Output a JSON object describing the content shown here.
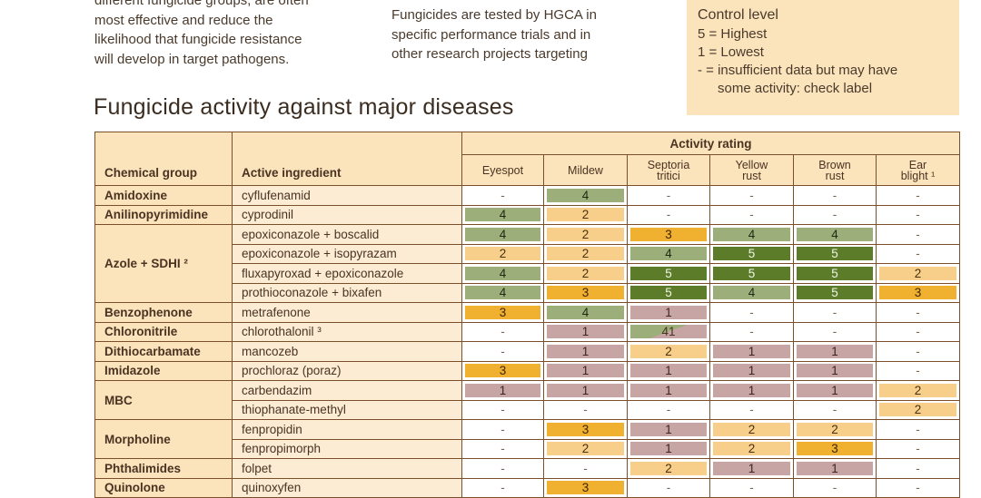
{
  "intro_left": [
    "different fungicide groups, are often",
    "most effective and reduce the",
    "likelihood that fungicide resistance",
    "will develop in target pathogens."
  ],
  "intro_mid": [
    "Fungicides are tested by HGCA in",
    "specific performance trials and in",
    "other research projects targeting"
  ],
  "legend": {
    "title": "Control level",
    "lines": [
      "5 = Highest",
      "1 = Lowest",
      "- = insufficient data but may have",
      "some activity: check label"
    ]
  },
  "section_title": "Fungicide activity against major diseases",
  "table": {
    "col_chemical_group": "Chemical group",
    "col_active_ingredient": "Active ingredient",
    "activity_rating": "Activity rating",
    "diseases": [
      [
        "Eyespot",
        ""
      ],
      [
        "Mildew",
        ""
      ],
      [
        "Septoria",
        "tritici"
      ],
      [
        "Yellow",
        "rust"
      ],
      [
        "Brown",
        "rust"
      ],
      [
        "Ear",
        "blight ¹"
      ]
    ],
    "groups": [
      {
        "name": "Amidoxine",
        "rows": [
          {
            "ai": "cyflufenamid",
            "r": [
              "-",
              "4",
              "-",
              "-",
              "-",
              "-"
            ]
          }
        ]
      },
      {
        "name": "Anilinopyrimidine",
        "rows": [
          {
            "ai": "cyprodinil",
            "r": [
              "4",
              "2",
              "-",
              "-",
              "-",
              "-"
            ]
          }
        ]
      },
      {
        "name": "Azole + SDHI ²",
        "rows": [
          {
            "ai": "epoxiconazole + boscalid",
            "r": [
              "4",
              "2",
              "3",
              "4",
              "4",
              "-"
            ]
          },
          {
            "ai": "epoxiconazole + isopyrazam",
            "r": [
              "2",
              "2",
              "4",
              "5",
              "5",
              "-"
            ]
          },
          {
            "ai": "fluxapyroxad + epoxiconazole",
            "r": [
              "4",
              "2",
              "5",
              "5",
              "5",
              "2"
            ]
          },
          {
            "ai": "prothioconazole + bixafen",
            "r": [
              "4",
              "3",
              "5",
              "4",
              "5",
              "3"
            ]
          }
        ]
      },
      {
        "name": "Benzophenone",
        "rows": [
          {
            "ai": "metrafenone",
            "r": [
              "3",
              "4",
              "1",
              "-",
              "-",
              "-"
            ]
          }
        ]
      },
      {
        "name": "Chloronitrile",
        "rows": [
          {
            "ai": "chlorothalonil ³",
            "r": [
              "-",
              "1",
              "4|1",
              "-",
              "-",
              "-"
            ]
          }
        ]
      },
      {
        "name": "Dithiocarbamate",
        "rows": [
          {
            "ai": "mancozeb",
            "r": [
              "-",
              "1",
              "2",
              "1",
              "1",
              "-"
            ]
          }
        ]
      },
      {
        "name": "Imidazole",
        "rows": [
          {
            "ai": "prochloraz (poraz)",
            "r": [
              "3",
              "1",
              "1",
              "1",
              "1",
              "-"
            ]
          }
        ]
      },
      {
        "name": "MBC",
        "rows": [
          {
            "ai": "carbendazim",
            "r": [
              "1",
              "1",
              "1",
              "1",
              "1",
              "2"
            ]
          },
          {
            "ai": "thiophanate-methyl",
            "r": [
              "-",
              "-",
              "-",
              "-",
              "-",
              "2"
            ]
          }
        ]
      },
      {
        "name": "Morpholine",
        "rows": [
          {
            "ai": "fenpropidin",
            "r": [
              "-",
              "3",
              "1",
              "2",
              "2",
              "-"
            ]
          },
          {
            "ai": "fenpropimorph",
            "r": [
              "-",
              "2",
              "1",
              "2",
              "3",
              "-"
            ]
          }
        ]
      },
      {
        "name": "Phthalimides",
        "rows": [
          {
            "ai": "folpet",
            "r": [
              "-",
              "-",
              "2",
              "1",
              "1",
              "-"
            ]
          }
        ]
      },
      {
        "name": "Quinolone",
        "rows": [
          {
            "ai": "quinoxyfen",
            "r": [
              "-",
              "3",
              "-",
              "-",
              "-",
              "-"
            ]
          }
        ]
      }
    ]
  },
  "colors": {
    "5": "#5c7c2a",
    "4": "#9caf7a",
    "3": "#f0b030",
    "2": "#f7cf8a",
    "1": "#c7a5a4"
  }
}
